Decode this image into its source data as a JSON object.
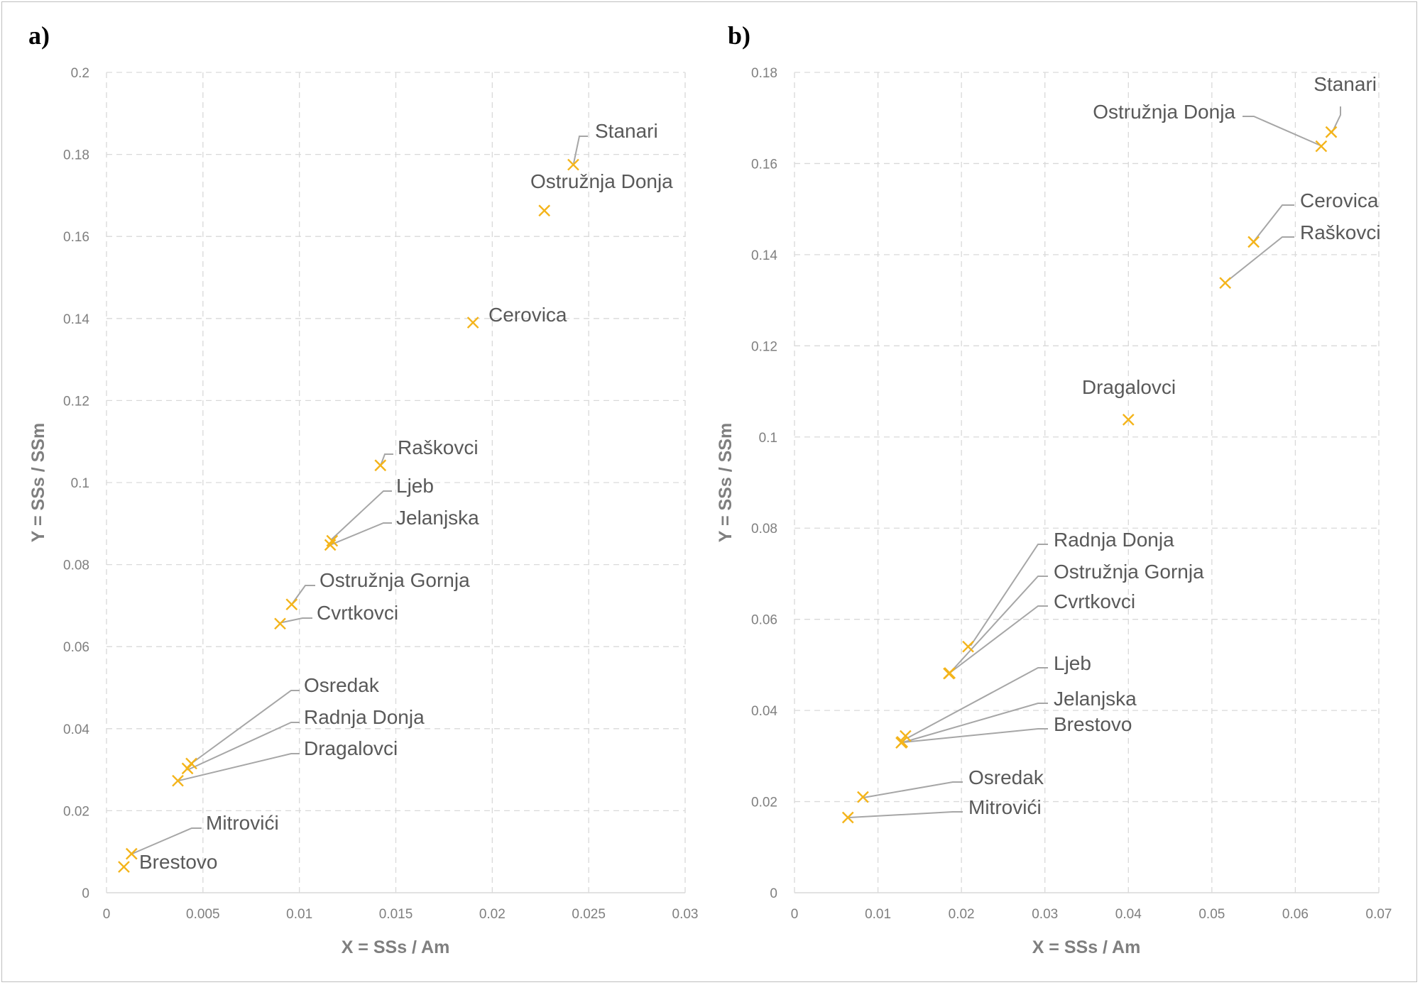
{
  "figure": {
    "marker_color": "#f4b41a",
    "grid_color": "#d9d9d9",
    "text_color": "#595959"
  },
  "chart_data": [
    {
      "type": "scatter",
      "panel_label": "a)",
      "xlabel": "X = SSs / Am",
      "ylabel": "Y = SSs / SSm",
      "xlim": [
        0,
        0.03
      ],
      "ylim": [
        0,
        0.2
      ],
      "x_ticks": [
        "0",
        "0.005",
        "0.01",
        "0.015",
        "0.02",
        "0.025",
        "0.03"
      ],
      "y_ticks": [
        "0",
        "0.02",
        "0.04",
        "0.06",
        "0.08",
        "0.1",
        "0.12",
        "0.14",
        "0.16",
        "0.18",
        "0.2"
      ],
      "grid": true,
      "points": [
        {
          "name": "Stanari",
          "x": 0.0242,
          "y": 0.1775
        },
        {
          "name": "Ostružnja Donja",
          "x": 0.0227,
          "y": 0.1663
        },
        {
          "name": "Cerovica",
          "x": 0.019,
          "y": 0.139
        },
        {
          "name": "Raškovci",
          "x": 0.0142,
          "y": 0.1042
        },
        {
          "name": "Ljeb",
          "x": 0.0117,
          "y": 0.0858
        },
        {
          "name": "Jelanjska",
          "x": 0.0116,
          "y": 0.0848
        },
        {
          "name": "Ostružnja Gornja",
          "x": 0.0096,
          "y": 0.0703
        },
        {
          "name": "Cvrtkovci",
          "x": 0.009,
          "y": 0.0656
        },
        {
          "name": "Osredak",
          "x": 0.0044,
          "y": 0.0315
        },
        {
          "name": "Radnja Donja",
          "x": 0.0042,
          "y": 0.0303
        },
        {
          "name": "Dragalovci",
          "x": 0.0037,
          "y": 0.0273
        },
        {
          "name": "Mitrovići",
          "x": 0.0013,
          "y": 0.0095
        },
        {
          "name": "Brestovo",
          "x": 0.0009,
          "y": 0.0063
        }
      ]
    },
    {
      "type": "scatter",
      "panel_label": "b)",
      "xlabel": "X = SSs / Am",
      "ylabel": "Y = SSs / SSm",
      "xlim": [
        0,
        0.07
      ],
      "ylim": [
        0,
        0.18
      ],
      "x_ticks": [
        "0",
        "0.01",
        "0.02",
        "0.03",
        "0.04",
        "0.05",
        "0.06",
        "0.07"
      ],
      "y_ticks": [
        "0",
        "0.02",
        "0.04",
        "0.06",
        "0.08",
        "0.1",
        "0.12",
        "0.14",
        "0.16",
        "0.18"
      ],
      "grid": true,
      "points": [
        {
          "name": "Stanari",
          "x": 0.0643,
          "y": 0.1669
        },
        {
          "name": "Ostružnja Donja",
          "x": 0.0631,
          "y": 0.1638
        },
        {
          "name": "Cerovica",
          "x": 0.055,
          "y": 0.1428
        },
        {
          "name": "Raškovci",
          "x": 0.0516,
          "y": 0.1338
        },
        {
          "name": "Dragalovci",
          "x": 0.04,
          "y": 0.1038
        },
        {
          "name": "Radnja Donja",
          "x": 0.0208,
          "y": 0.054
        },
        {
          "name": "Ostružnja Gornja",
          "x": 0.0186,
          "y": 0.0482
        },
        {
          "name": "Cvrtkovci",
          "x": 0.0185,
          "y": 0.0481
        },
        {
          "name": "Ljeb",
          "x": 0.0133,
          "y": 0.0344
        },
        {
          "name": "Jelanjska",
          "x": 0.0129,
          "y": 0.0331
        },
        {
          "name": "Brestovo",
          "x": 0.0128,
          "y": 0.0329
        },
        {
          "name": "Osredak",
          "x": 0.0082,
          "y": 0.021
        },
        {
          "name": "Mitrovići",
          "x": 0.0064,
          "y": 0.0165
        }
      ]
    }
  ]
}
